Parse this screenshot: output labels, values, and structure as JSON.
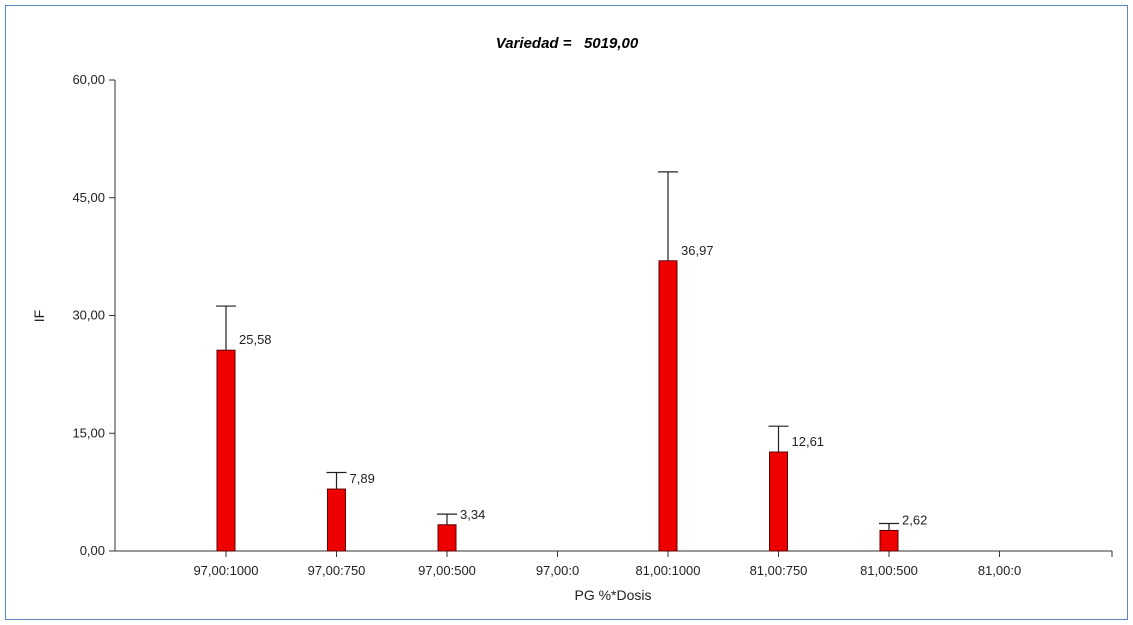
{
  "chart_data": {
    "type": "bar",
    "title_label": "Variedad =",
    "title_value": "5019,00",
    "xlabel": "PG %*Dosis",
    "ylabel": "IF",
    "ylim": [
      0,
      60
    ],
    "yticks": [
      0,
      15,
      30,
      45,
      60
    ],
    "ytick_labels": [
      "0,00",
      "15,00",
      "30,00",
      "45,00",
      "60,00"
    ],
    "categories": [
      "97,00:1000",
      "97,00:750",
      "97,00:500",
      "97,00:0",
      "81,00:1000",
      "81,00:750",
      "81,00:500",
      "81,00:0"
    ],
    "values": [
      25.58,
      7.89,
      3.34,
      null,
      36.97,
      12.61,
      2.62,
      null
    ],
    "value_labels": [
      "25,58",
      "7,89",
      "3,34",
      "",
      "36,97",
      "12,61",
      "2,62",
      ""
    ],
    "error_upper": [
      31.2,
      10.0,
      4.7,
      null,
      48.3,
      15.9,
      3.5,
      null
    ],
    "bar_color": "#ee0000",
    "grid": false
  }
}
